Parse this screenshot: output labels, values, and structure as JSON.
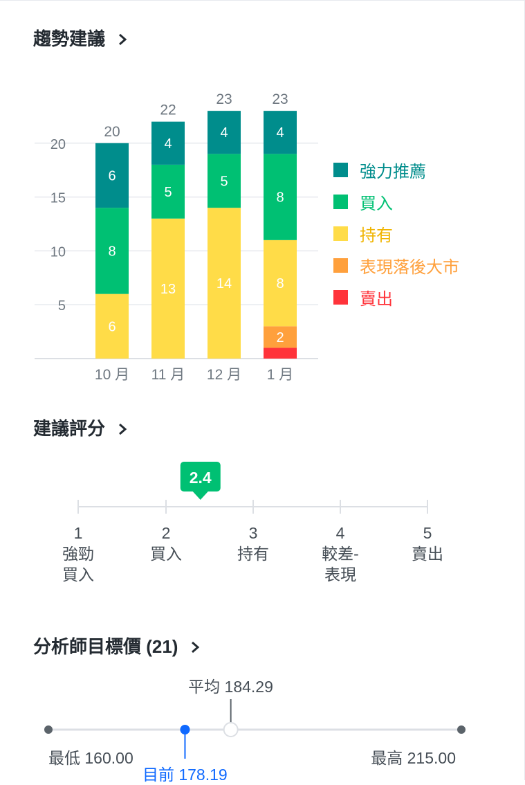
{
  "trend": {
    "title": "趨勢建議",
    "chart_data": {
      "type": "bar",
      "stacked": true,
      "categories": [
        "10 月",
        "11 月",
        "12 月",
        "1 月"
      ],
      "series": [
        {
          "name": "賣出",
          "color": "#ff333a",
          "values": [
            0,
            0,
            0,
            1
          ]
        },
        {
          "name": "表現落後大市",
          "color": "#ffa03c",
          "values": [
            0,
            0,
            0,
            2
          ]
        },
        {
          "name": "持有",
          "color": "#ffdc48",
          "values": [
            6,
            13,
            14,
            8
          ]
        },
        {
          "name": "買入",
          "color": "#00c073",
          "values": [
            8,
            5,
            5,
            8
          ]
        },
        {
          "name": "強力推薦",
          "color": "#008d8c",
          "values": [
            6,
            4,
            4,
            4
          ]
        }
      ],
      "totals": [
        "20",
        "22",
        "23",
        "23"
      ],
      "yticks": [
        "5",
        "10",
        "15",
        "20"
      ],
      "ylim": [
        0,
        23
      ],
      "grid": true,
      "legend_position": "right"
    },
    "legend": [
      {
        "label": "強力推薦",
        "color": "#008d8c"
      },
      {
        "label": "買入",
        "color": "#00c073"
      },
      {
        "label": "持有",
        "color": "#ffdc48",
        "text_color": "#f0b400"
      },
      {
        "label": "表現落後大市",
        "color": "#ffa03c"
      },
      {
        "label": "賣出",
        "color": "#ff333a"
      }
    ]
  },
  "rating": {
    "title": "建議評分",
    "value": 2.4,
    "value_label": "2.4",
    "scale_min": 1,
    "scale_max": 5,
    "badge_color": "#00c073",
    "scale": [
      {
        "num": "1",
        "line1": "強勁",
        "line2": "買入"
      },
      {
        "num": "2",
        "line1": "買入",
        "line2": ""
      },
      {
        "num": "3",
        "line1": "持有",
        "line2": ""
      },
      {
        "num": "4",
        "line1": "較差-",
        "line2": "表現"
      },
      {
        "num": "5",
        "line1": "賣出",
        "line2": ""
      }
    ]
  },
  "target": {
    "title": "分析師目標價 (21)",
    "low_label": "最低 160.00",
    "high_label": "最高 215.00",
    "avg_label": "平均 184.29",
    "current_label": "目前 178.19",
    "low": 160.0,
    "high": 215.0,
    "average": 184.29,
    "current": 178.19,
    "current_color": "#0f69ff"
  }
}
